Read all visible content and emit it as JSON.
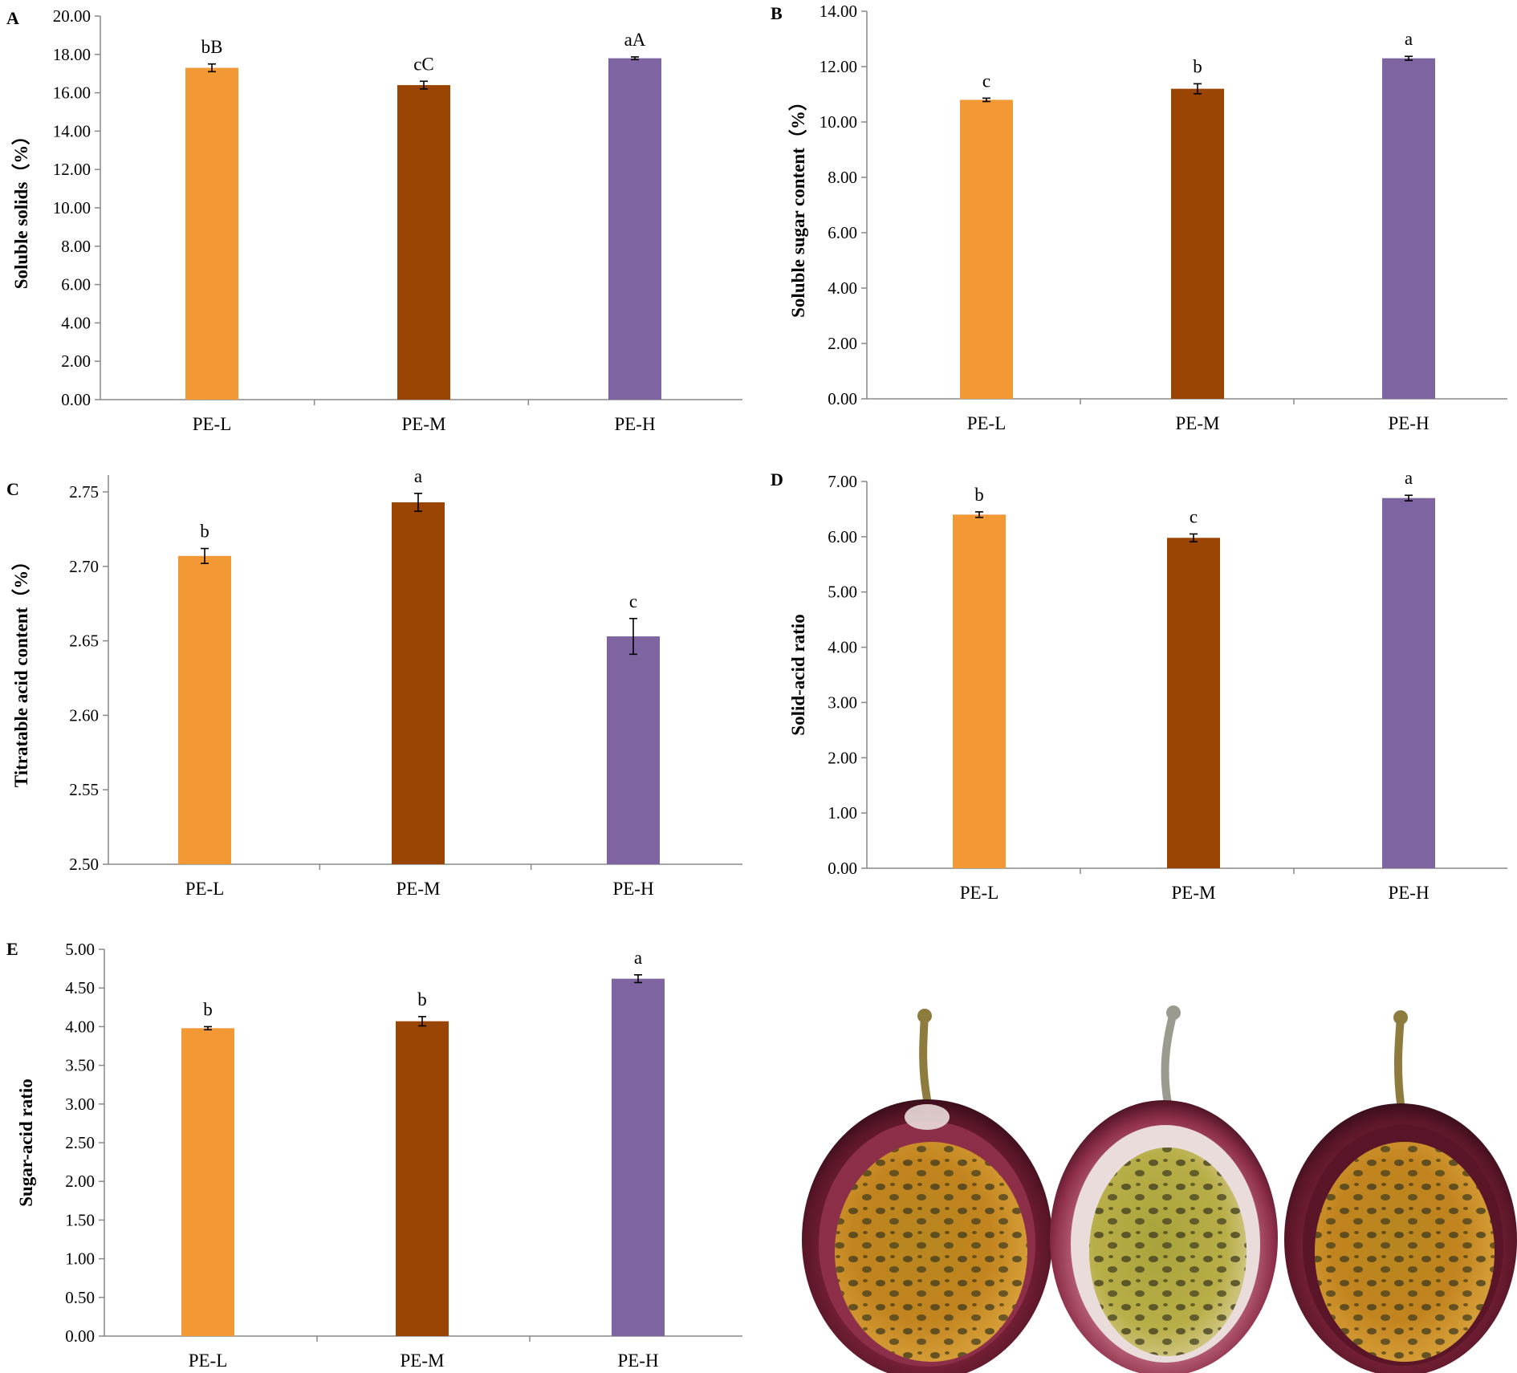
{
  "chart_data": [
    {
      "panel": "A",
      "type": "bar",
      "categories": [
        "PE-L",
        "PE-M",
        "PE-H"
      ],
      "values": [
        17.3,
        16.4,
        17.8
      ],
      "errors": [
        0.2,
        0.2,
        0.07
      ],
      "significance": [
        "bB",
        "cC",
        "aA"
      ],
      "ylabel": "Soluble solids（%）",
      "ylim": [
        0,
        20
      ],
      "yticks": [
        "0.00",
        "2.00",
        "4.00",
        "6.00",
        "8.00",
        "10.00",
        "12.00",
        "14.00",
        "16.00",
        "18.00",
        "20.00"
      ],
      "colors": [
        "#F29835",
        "#9A4503",
        "#7F64A2"
      ]
    },
    {
      "panel": "B",
      "type": "bar",
      "categories": [
        "PE-L",
        "PE-M",
        "PE-H"
      ],
      "values": [
        10.8,
        11.2,
        12.3
      ],
      "errors": [
        0.06,
        0.18,
        0.07
      ],
      "significance": [
        "c",
        "b",
        "a"
      ],
      "ylabel": "Soluble sugar content（%）",
      "ylim": [
        0,
        14
      ],
      "yticks": [
        "0.00",
        "2.00",
        "4.00",
        "6.00",
        "8.00",
        "10.00",
        "12.00",
        "14.00"
      ],
      "colors": [
        "#F29835",
        "#9A4503",
        "#7F64A2"
      ]
    },
    {
      "panel": "C",
      "type": "bar",
      "categories": [
        "PE-L",
        "PE-M",
        "PE-H"
      ],
      "values": [
        2.707,
        2.743,
        2.653
      ],
      "errors": [
        0.005,
        0.006,
        0.012
      ],
      "significance": [
        "b",
        "a",
        "c"
      ],
      "ylabel": "Titratable acid content（%）",
      "ylim": [
        2.5,
        2.76
      ],
      "yticks": [
        "2.50",
        "2.55",
        "2.60",
        "2.65",
        "2.70",
        "2.75"
      ],
      "colors": [
        "#F29835",
        "#9A4503",
        "#7F64A2"
      ]
    },
    {
      "panel": "D",
      "type": "bar",
      "categories": [
        "PE-L",
        "PE-M",
        "PE-H"
      ],
      "values": [
        6.4,
        5.98,
        6.7
      ],
      "errors": [
        0.05,
        0.07,
        0.05
      ],
      "significance": [
        "b",
        "c",
        "a"
      ],
      "ylabel": "Solid-acid ratio",
      "ylim": [
        0,
        7
      ],
      "yticks": [
        "0.00",
        "1.00",
        "2.00",
        "3.00",
        "4.00",
        "5.00",
        "6.00",
        "7.00"
      ],
      "colors": [
        "#F29835",
        "#9A4503",
        "#7F64A2"
      ]
    },
    {
      "panel": "E",
      "type": "bar",
      "categories": [
        "PE-L",
        "PE-M",
        "PE-H"
      ],
      "values": [
        3.98,
        4.07,
        4.62
      ],
      "errors": [
        0.02,
        0.06,
        0.05
      ],
      "significance": [
        "b",
        "b",
        "a"
      ],
      "ylabel": "Sugar-acid ratio",
      "ylim": [
        0,
        5
      ],
      "yticks": [
        "0.00",
        "0.50",
        "1.00",
        "1.50",
        "2.00",
        "2.50",
        "3.00",
        "3.50",
        "4.00",
        "4.50",
        "5.00"
      ],
      "colors": [
        "#F29835",
        "#9A4503",
        "#7F64A2"
      ]
    }
  ],
  "photo": {
    "subject": "passion-fruit-cross-sections",
    "count": 3,
    "colors": {
      "rind_dark": "#4E1424",
      "rind_mid": "#8E2F4A",
      "rind_light": "#B9637A",
      "albedo": "#E9DCDA",
      "pulp": "#C2841E",
      "pulp_green": "#A9A23A",
      "seed": "#3E3B1E",
      "stem": "#8E7C3E"
    }
  }
}
